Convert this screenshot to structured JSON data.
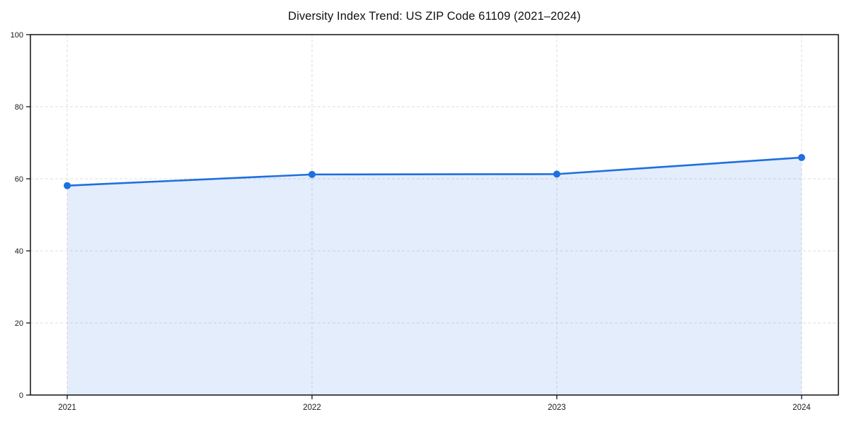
{
  "chart_data": {
    "type": "area",
    "title": "Diversity Index Trend: US ZIP Code 61109 (2021–2024)",
    "x": [
      "2021",
      "2022",
      "2023",
      "2024"
    ],
    "series": [
      {
        "name": "Diversity Index",
        "values": [
          58.1,
          61.2,
          61.3,
          65.9
        ]
      }
    ],
    "xlabel": "",
    "ylabel": "",
    "ylim": [
      0,
      100
    ],
    "yticks": [
      0,
      20,
      40,
      60,
      80,
      100
    ],
    "grid": true,
    "grid_style": "dashed",
    "legend": "none",
    "colors": {
      "line": "#1e6fe0",
      "marker": "#1e6fe0",
      "fill": "rgba(30, 111, 224, 0.12)",
      "grid": "#dcdcdc",
      "axis": "#000000",
      "tick_text": "#1a1a1a",
      "title_text": "#111111",
      "background": "#ffffff"
    }
  }
}
